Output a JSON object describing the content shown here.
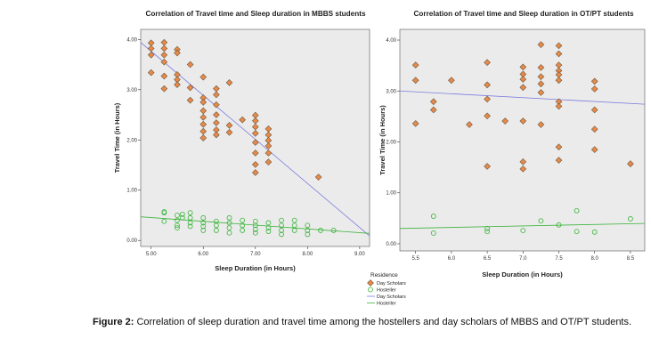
{
  "chart_data": [
    {
      "type": "scatter",
      "title": "Correlation of Travel time and Sleep duration in MBBS students",
      "xlabel": "Sleep Duration (in Hours)",
      "ylabel": "Travel Time (in Hours)",
      "xlim": [
        4.8,
        9.19
      ],
      "ylim": [
        -0.12,
        4.2
      ],
      "xticks": [
        {
          "value": 5,
          "label": "5.00"
        },
        {
          "value": 6,
          "label": "6.00"
        },
        {
          "value": 7,
          "label": "7.00"
        },
        {
          "value": 8,
          "label": "8.00"
        },
        {
          "value": 9,
          "label": "9.00"
        }
      ],
      "yticks": [
        {
          "value": 0,
          "label": "0.00"
        },
        {
          "value": 1,
          "label": "1.00"
        },
        {
          "value": 2,
          "label": "2.00"
        },
        {
          "value": 3,
          "label": "3.00"
        },
        {
          "value": 4,
          "label": "4.00"
        }
      ],
      "series": [
        {
          "name": "Day Scholars",
          "color": "#e8884a",
          "marker": "diamond",
          "x": [
            5,
            5,
            5,
            5,
            5.25,
            5.25,
            5.25,
            5.25,
            5.25,
            5.25,
            5.5,
            5.5,
            5.5,
            5.5,
            5.5,
            5.75,
            5.75,
            5.75,
            6,
            6,
            6,
            6,
            6,
            6,
            6,
            6,
            6.25,
            6.25,
            6.25,
            6.25,
            6.25,
            6.25,
            6.25,
            6.5,
            6.5,
            6.5,
            6.75,
            7,
            7,
            7,
            7,
            7,
            7,
            7,
            7,
            7.25,
            7.25,
            7.25,
            7.25,
            7.25,
            7.25,
            8.21
          ],
          "values": [
            3.93,
            3.82,
            3.69,
            3.34,
            3.94,
            3.82,
            3.69,
            3.55,
            3.27,
            3.02,
            3.8,
            3.73,
            3.3,
            3.2,
            3.1,
            3.5,
            3.04,
            2.79,
            3.25,
            2.84,
            2.75,
            2.58,
            2.45,
            2.31,
            2.17,
            2.04,
            3.02,
            2.9,
            2.7,
            2.5,
            2.34,
            2.2,
            2.1,
            3.14,
            2.29,
            2.15,
            2.4,
            2.49,
            2.38,
            2.26,
            2.13,
            1.95,
            1.74,
            1.51,
            1.35,
            2.22,
            2.1,
            1.99,
            1.88,
            1.74,
            1.56,
            1.26
          ]
        },
        {
          "name": "Hosteller",
          "color": "#3cb43c",
          "marker": "circle",
          "x": [
            5.25,
            5.25,
            5.25,
            5.5,
            5.5,
            5.5,
            5.5,
            5.6,
            5.6,
            5.75,
            5.75,
            5.75,
            5.75,
            6,
            6,
            6,
            6,
            6.25,
            6.25,
            6.25,
            6.5,
            6.5,
            6.5,
            6.5,
            6.75,
            6.75,
            6.75,
            7,
            7,
            7,
            7,
            7.25,
            7.25,
            7.25,
            7.5,
            7.5,
            7.5,
            7.5,
            7.75,
            7.75,
            7.75,
            8,
            8,
            8,
            8.25,
            8.5
          ],
          "values": [
            0.57,
            0.55,
            0.38,
            0.5,
            0.4,
            0.3,
            0.25,
            0.52,
            0.45,
            0.55,
            0.45,
            0.35,
            0.28,
            0.45,
            0.35,
            0.28,
            0.2,
            0.38,
            0.3,
            0.2,
            0.45,
            0.35,
            0.25,
            0.15,
            0.4,
            0.3,
            0.2,
            0.38,
            0.3,
            0.22,
            0.15,
            0.35,
            0.25,
            0.18,
            0.4,
            0.3,
            0.2,
            0.12,
            0.4,
            0.3,
            0.2,
            0.3,
            0.2,
            0.12,
            0.2,
            0.2
          ]
        }
      ],
      "fit_lines": [
        {
          "name": "Day Scholars",
          "color": "#7b7be0",
          "x": [
            4.8,
            9.19
          ],
          "values": [
            3.94,
            0.09
          ]
        },
        {
          "name": "Hosteller",
          "color": "#3cb43c",
          "x": [
            4.8,
            9.19
          ],
          "values": [
            0.47,
            0.14
          ]
        }
      ]
    },
    {
      "type": "scatter",
      "title": "Correlation of Travel time and Sleep duration in OT/PT students",
      "xlabel": "Sleep Duration (in Hours)",
      "ylabel": "Travel Time (in Hours)",
      "xlim": [
        5.28,
        8.7
      ],
      "ylim": [
        -0.14,
        4.21
      ],
      "xticks": [
        5.5,
        {
          "value": 6,
          "label": "6.0"
        },
        6.5,
        {
          "value": 7,
          "label": "7.0"
        },
        7.5,
        {
          "value": 8,
          "label": "8.0"
        },
        8.5
      ],
      "yticks": [
        {
          "value": 0,
          "label": "0.00"
        },
        {
          "value": 1,
          "label": "1.00"
        },
        {
          "value": 2,
          "label": "2.00"
        },
        {
          "value": 3,
          "label": "3.00"
        },
        {
          "value": 4,
          "label": "4.00"
        }
      ],
      "series": [
        {
          "color": "#e8884a",
          "marker": "diamond",
          "x": [
            5.5,
            5.5,
            5.5,
            5.75,
            5.75,
            6,
            6.25,
            6.5,
            6.5,
            6.5,
            6.5,
            6.5,
            6.75,
            7,
            7,
            7,
            7,
            7,
            7,
            7,
            7.25,
            7.25,
            7.25,
            7.25,
            7.25,
            7.25,
            7.5,
            7.5,
            7.5,
            7.5,
            7.5,
            7.5,
            7.5,
            7.5,
            7.5,
            7.5,
            8,
            8,
            8,
            8,
            8,
            8.5
          ],
          "values": [
            3.51,
            3.21,
            2.36,
            2.79,
            2.63,
            3.21,
            2.34,
            3.56,
            3.12,
            2.84,
            2.51,
            1.52,
            2.41,
            3.47,
            3.33,
            3.23,
            3.07,
            2.41,
            1.61,
            1.47,
            3.91,
            3.46,
            3.28,
            3.14,
            2.97,
            2.34,
            3.89,
            3.73,
            3.51,
            3.4,
            3.32,
            3.21,
            2.79,
            2.7,
            1.9,
            1.64,
            3.19,
            3.04,
            2.63,
            2.25,
            1.85,
            1.57
          ]
        },
        {
          "color": "#3cb43c",
          "marker": "circle",
          "x": [
            5.75,
            5.75,
            6.5,
            6.5,
            7,
            7.25,
            7.5,
            7.75,
            7.75,
            8,
            8.5
          ],
          "values": [
            0.54,
            0.21,
            0.3,
            0.24,
            0.26,
            0.45,
            0.37,
            0.65,
            0.24,
            0.23,
            0.49
          ]
        }
      ],
      "fit_lines": [
        {
          "color": "#7b7be0",
          "x": [
            5.28,
            8.7
          ],
          "values": [
            3.0,
            2.74
          ]
        },
        {
          "color": "#3cb43c",
          "x": [
            5.28,
            8.7
          ],
          "values": [
            0.3,
            0.4
          ]
        }
      ]
    }
  ],
  "legend_title": "Residence",
  "caption": {
    "label": "Figure 2:",
    "text": "Correlation of sleep duration and travel time among the hostellers and day scholars of MBBS and OT/PT students."
  }
}
